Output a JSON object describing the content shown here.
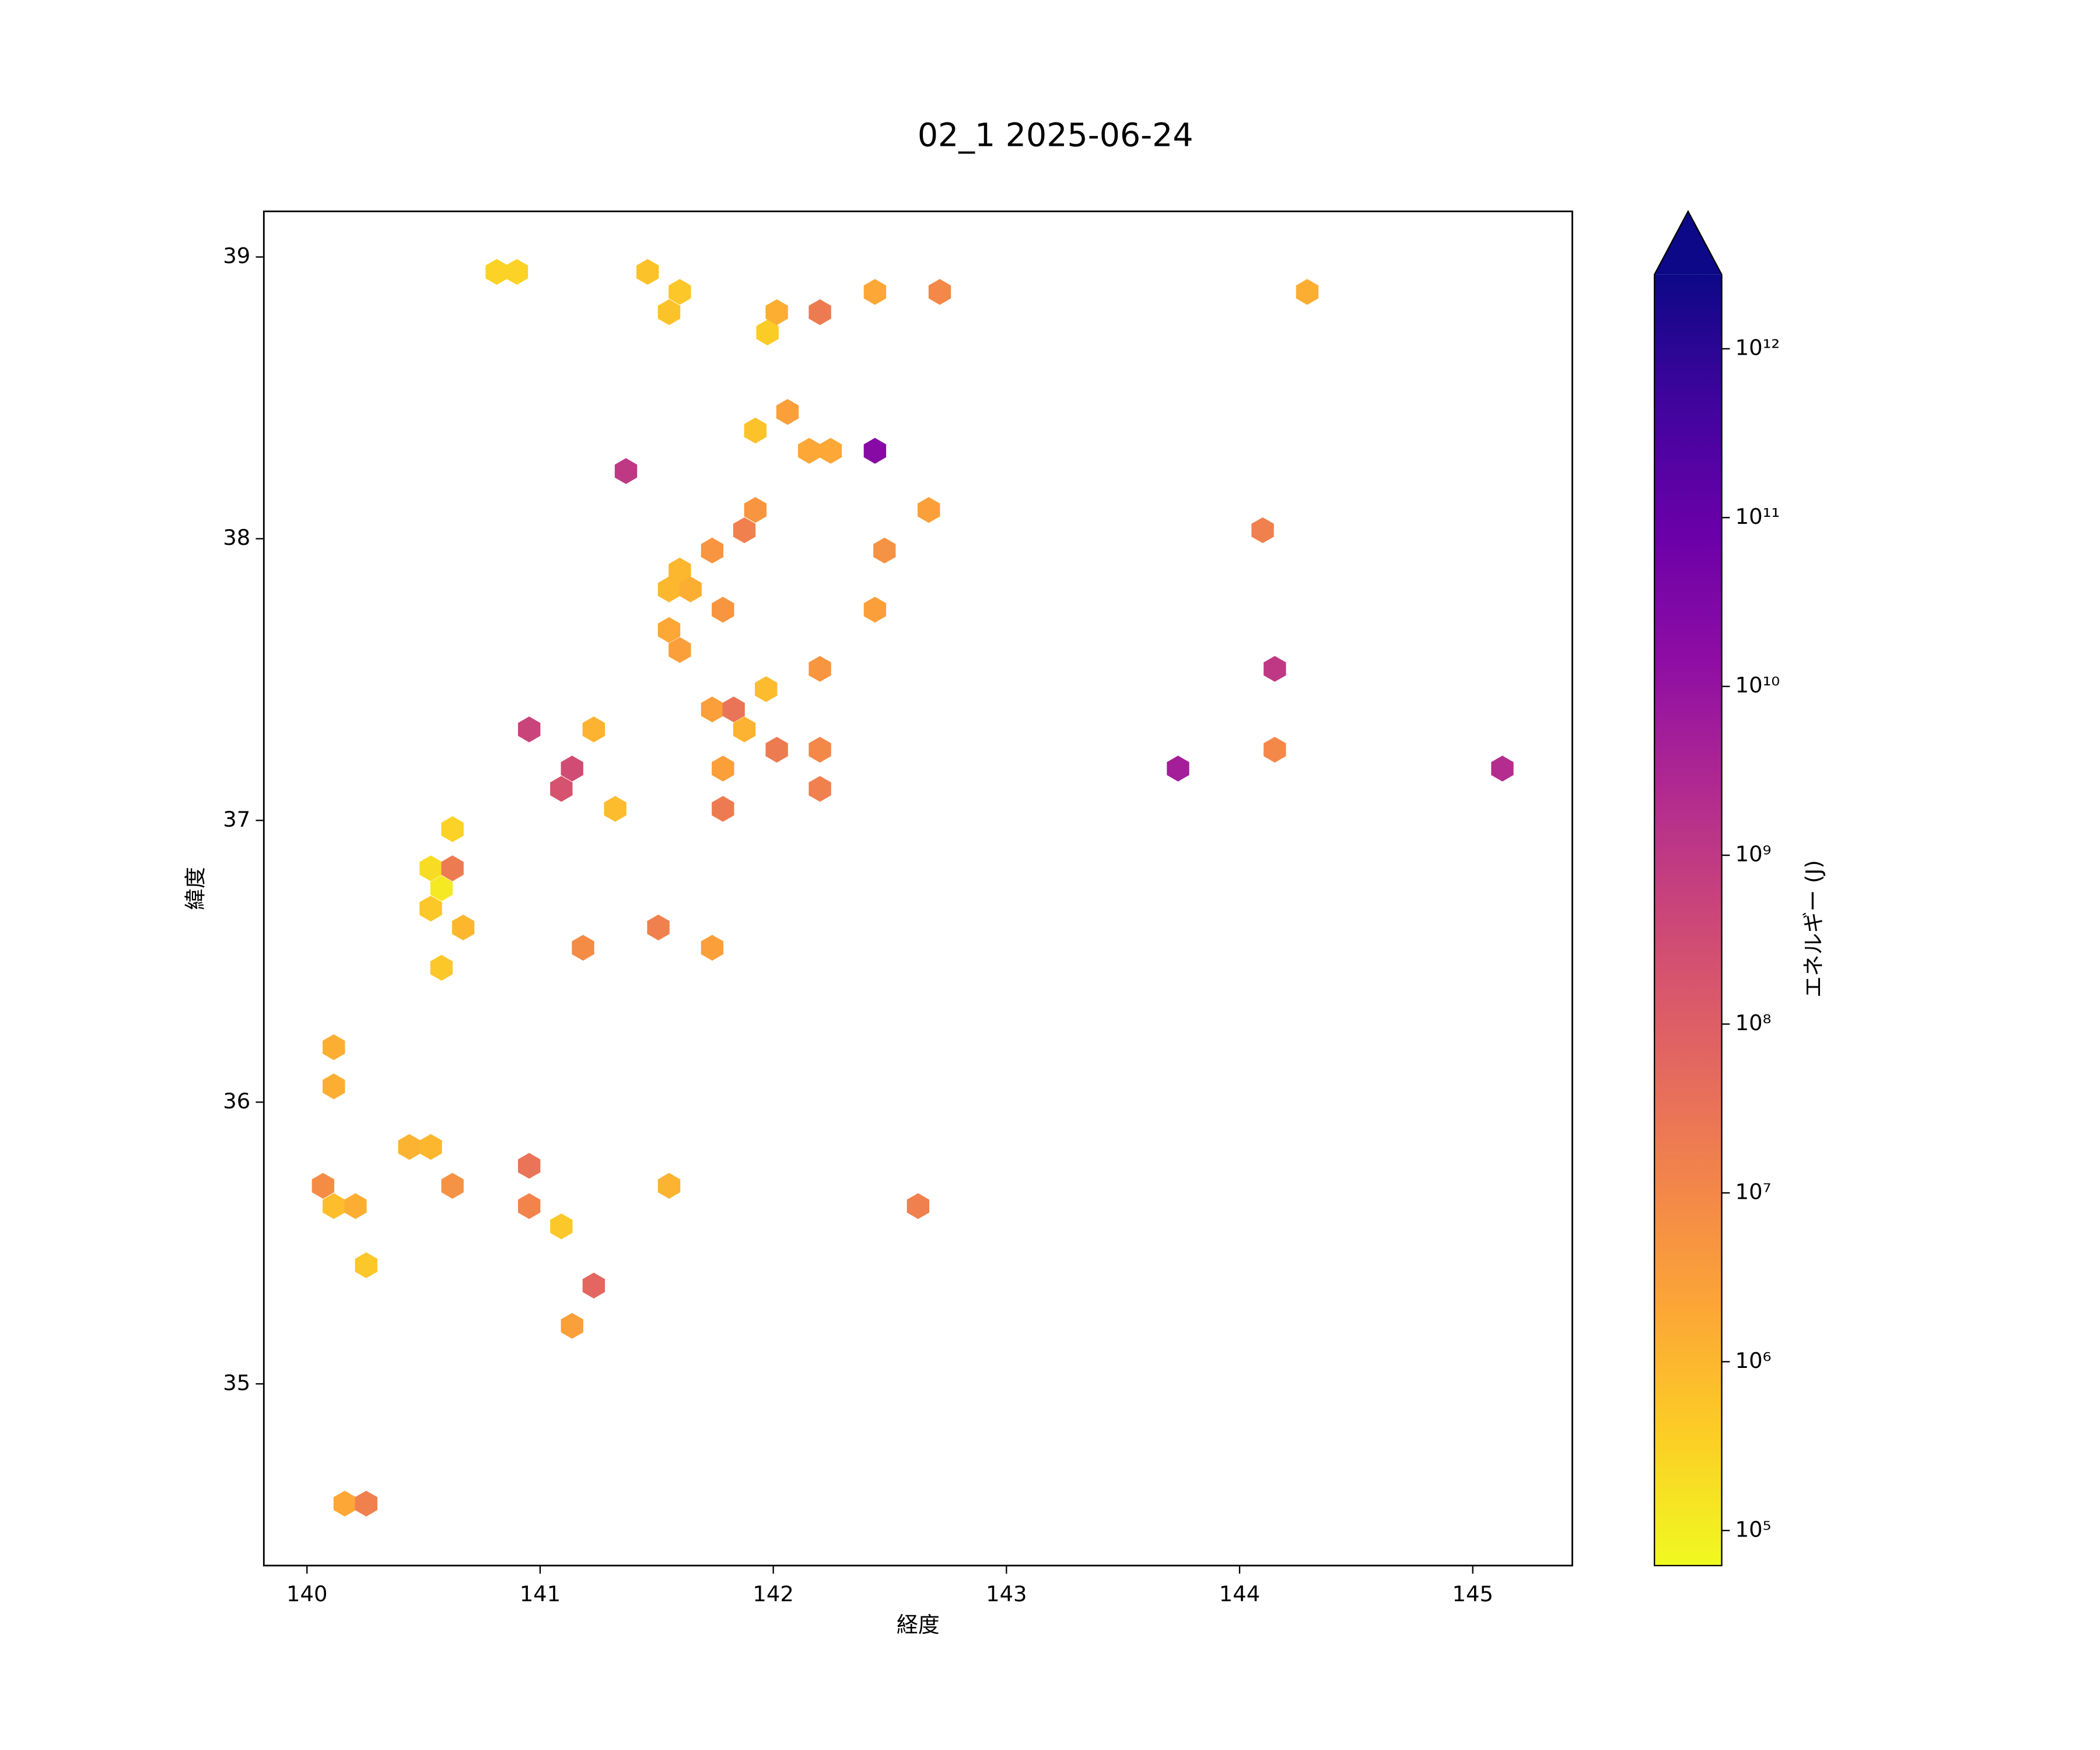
{
  "chart_data": {
    "type": "hexbin",
    "title": "02_1 2025-06-24",
    "x_label": "経度",
    "y_label": "緯度",
    "colorbar_label": "エネルギー (J)",
    "cmap": "plasma_r",
    "colorbar_scale": "log",
    "colorbar_extend": "max",
    "xlim": [
      139.815,
      145.427
    ],
    "ylim": [
      34.355,
      39.162
    ],
    "xticks": [
      140,
      141,
      142,
      143,
      144,
      145
    ],
    "yticks": [
      35,
      36,
      37,
      38,
      39
    ],
    "clim": [
      62000,
      2750000000000
    ],
    "cticks": [
      {
        "value": 100000,
        "label": "10⁵"
      },
      {
        "value": 1000000,
        "label": "10⁶"
      },
      {
        "value": 10000000,
        "label": "10⁷"
      },
      {
        "value": 100000000,
        "label": "10⁸"
      },
      {
        "value": 1000000000,
        "label": "10⁹"
      },
      {
        "value": 10000000000,
        "label": "10¹⁰"
      },
      {
        "value": 100000000000,
        "label": "10¹¹"
      },
      {
        "value": 1000000000000,
        "label": "10¹²"
      }
    ],
    "x": [
      140.814,
      140.9,
      141.461,
      141.599,
      141.553,
      141.975,
      142.015,
      142.2,
      142.436,
      142.714,
      144.29,
      142.061,
      141.923,
      142.154,
      142.246,
      142.436,
      141.368,
      142.667,
      141.923,
      141.876,
      144.099,
      141.738,
      142.477,
      141.599,
      141.553,
      141.645,
      141.784,
      142.436,
      141.553,
      141.599,
      142.2,
      144.151,
      141.969,
      141.738,
      141.83,
      141.876,
      140.953,
      141.23,
      142.015,
      142.2,
      144.151,
      141.137,
      141.784,
      143.736,
      145.127,
      141.091,
      142.2,
      141.322,
      141.784,
      140.624,
      140.531,
      140.624,
      140.577,
      140.531,
      140.67,
      141.507,
      141.184,
      141.738,
      140.577,
      140.115,
      140.115,
      140.439,
      140.531,
      140.953,
      140.069,
      140.624,
      141.553,
      140.115,
      140.208,
      140.953,
      142.621,
      141.091,
      140.254,
      141.23,
      141.137,
      140.162,
      140.254
    ],
    "y": [
      38.947,
      38.947,
      38.947,
      38.876,
      38.804,
      38.732,
      38.804,
      38.804,
      38.876,
      38.876,
      38.876,
      38.45,
      38.384,
      38.312,
      38.312,
      38.312,
      38.24,
      38.102,
      38.102,
      38.03,
      38.03,
      37.958,
      37.958,
      37.887,
      37.82,
      37.82,
      37.748,
      37.748,
      37.676,
      37.605,
      37.538,
      37.538,
      37.466,
      37.394,
      37.394,
      37.323,
      37.323,
      37.323,
      37.251,
      37.251,
      37.251,
      37.184,
      37.184,
      37.184,
      37.184,
      37.112,
      37.112,
      37.041,
      37.041,
      36.969,
      36.83,
      36.83,
      36.759,
      36.687,
      36.62,
      36.62,
      36.548,
      36.548,
      36.477,
      36.195,
      36.056,
      35.841,
      35.841,
      35.774,
      35.703,
      35.703,
      35.703,
      35.631,
      35.631,
      35.631,
      35.631,
      35.559,
      35.421,
      35.349,
      35.206,
      34.575,
      34.575
    ],
    "values": [
      300000,
      300000,
      600000,
      500000,
      600000,
      400000,
      1500000,
      20000000,
      2000000,
      10000000,
      1500000,
      3000000,
      600000,
      2000000,
      2000000,
      20000000000,
      1000000000,
      3000000,
      5000000,
      15000000,
      15000000,
      5000000,
      6000000,
      1000000,
      1000000,
      1500000,
      5000000,
      3000000,
      2000000,
      3000000,
      5000000,
      1000000000,
      800000,
      3000000,
      30000000,
      1200000,
      500000000,
      1200000,
      20000000,
      10000000,
      10000000,
      300000000,
      3000000,
      5000000000,
      2000000000,
      200000000,
      15000000,
      800000,
      20000000,
      300000,
      200000,
      20000000,
      120000,
      500000,
      1000000,
      15000000,
      8000000,
      3000000,
      500000,
      1500000,
      1500000,
      1200000,
      1000000,
      30000000,
      8000000,
      6000000,
      1200000,
      700000,
      1500000,
      12000000,
      15000000,
      500000,
      500000,
      60000000,
      3000000,
      2000000,
      15000000
    ]
  }
}
